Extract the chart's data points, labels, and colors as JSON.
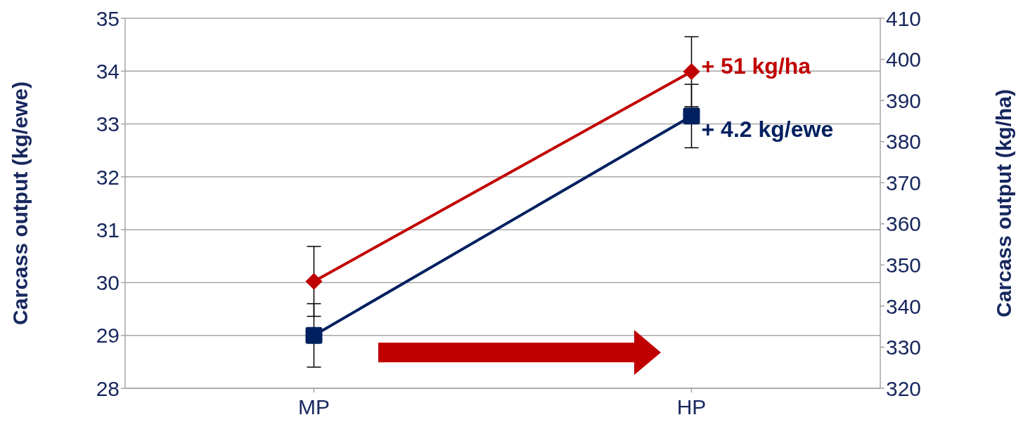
{
  "chart_data": {
    "type": "line",
    "categories": [
      "MP",
      "HP"
    ],
    "ylabel": "Carcass output (kg/ewe)",
    "y2label": "Carcass output (kg/ha)",
    "ylim": [
      28,
      35
    ],
    "yticks": [
      28,
      29,
      30,
      31,
      32,
      33,
      34,
      35
    ],
    "y2lim": [
      320,
      410
    ],
    "y2ticks": [
      320,
      330,
      340,
      350,
      360,
      370,
      380,
      390,
      400,
      410
    ],
    "grid": "y",
    "legend": false,
    "series": [
      {
        "color": "#002060",
        "values": [
          29.0,
          33.15
        ],
        "errors": [
          0.6,
          0.6
        ],
        "marker": "square",
        "axis": "y"
      },
      {
        "color": "#c00000",
        "values": [
          346,
          397
        ],
        "errors": [
          8.5,
          8.5
        ],
        "marker": "diamond",
        "axis": "y2"
      }
    ],
    "annotations": [
      {
        "text": "+ 4.2 kg/ewe",
        "x": "HP",
        "y": 32.9
      },
      {
        "text": "+ 51 kg/ha",
        "x": "HP",
        "y": 34.1
      }
    ]
  }
}
